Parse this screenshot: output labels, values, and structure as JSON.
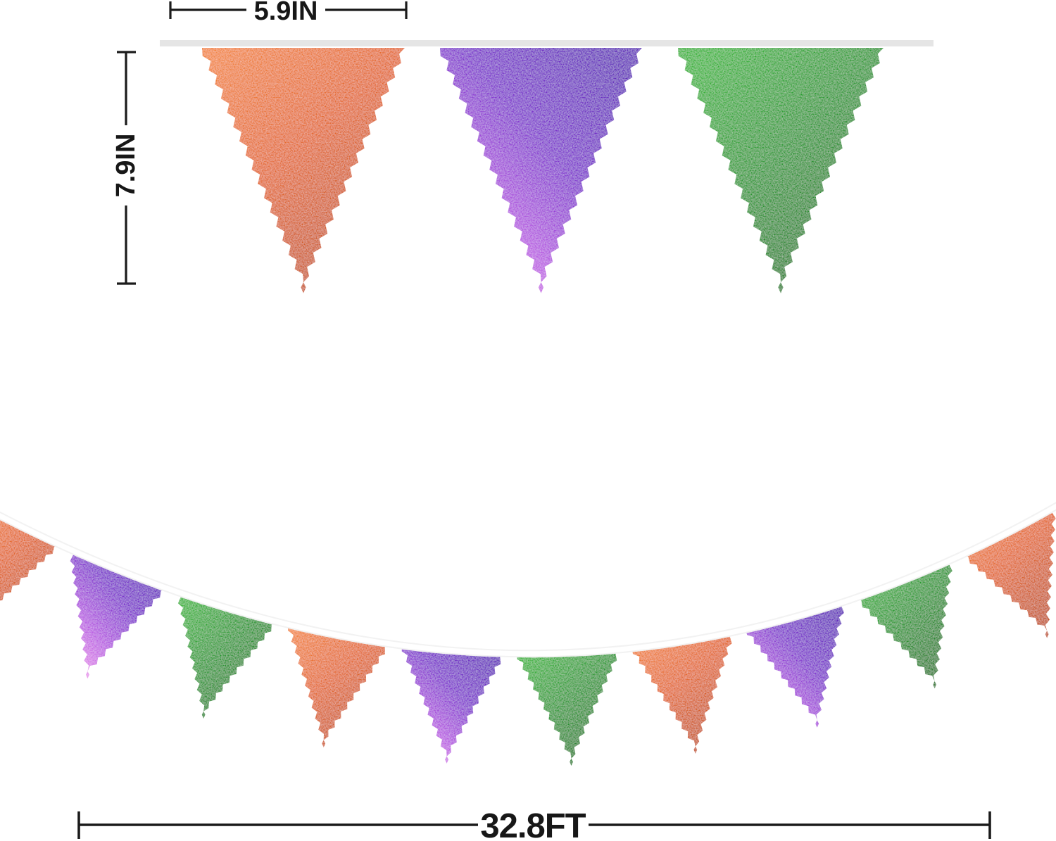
{
  "dimensions": {
    "width_label": "5.9IN",
    "height_label": "7.9IN",
    "length_label": "32.8FT"
  },
  "colors": {
    "orange": {
      "light": "#f28232",
      "base": "#e3641c",
      "dark": "#bf4b0c"
    },
    "purple": {
      "light": "#f09aec",
      "mid": "#b855e2",
      "base": "#7a22cc",
      "dark": "#5c10ba"
    },
    "green": {
      "light": "#2db32d",
      "base": "#179424",
      "dark": "#0a7510"
    },
    "ribbon": "#e5e5e5",
    "string": "#ffffff",
    "string_edge": "#f2f2f2",
    "dimension_line": "#1b1b1b"
  },
  "top_row": {
    "flags": [
      "orange",
      "purple",
      "green"
    ]
  },
  "bottom_garland": {
    "flags": [
      "orange",
      "purple",
      "green",
      "orange",
      "purple",
      "green",
      "orange",
      "purple",
      "green",
      "orange"
    ]
  }
}
